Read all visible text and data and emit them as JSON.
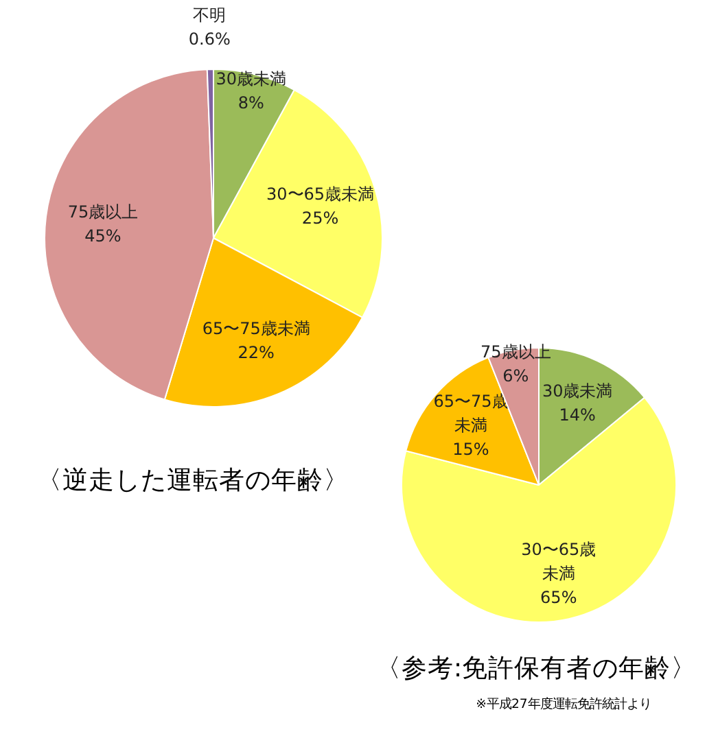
{
  "chart_data": [
    {
      "type": "pie",
      "title": "〈逆走した運転者の年齢〉",
      "categories": [
        "30歳未満",
        "30〜65歳未満",
        "65〜75歳未満",
        "75歳以上",
        "不明"
      ],
      "values": [
        8,
        25,
        22,
        45,
        0.6
      ],
      "colors": [
        "#9bbb59",
        "#ffff66",
        "#ffc000",
        "#d99694",
        "#8064a2"
      ],
      "value_labels": [
        "8%",
        "25%",
        "22%",
        "45%",
        "0.6%"
      ]
    },
    {
      "type": "pie",
      "title": "〈参考:免許保有者の年齢〉",
      "categories": [
        "30歳未満",
        "30〜65歳未満",
        "65〜75歳未満",
        "75歳以上"
      ],
      "values": [
        14,
        65,
        15,
        6
      ],
      "colors": [
        "#9bbb59",
        "#ffff66",
        "#ffc000",
        "#d99694"
      ],
      "value_labels": [
        "14%",
        "65%",
        "15%",
        "6%"
      ],
      "annotations": [
        "※平成27年度運転免許統計より"
      ]
    }
  ]
}
